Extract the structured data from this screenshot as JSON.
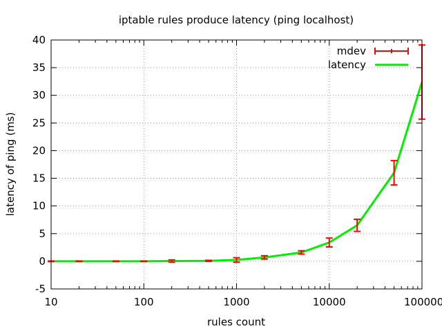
{
  "chart_data": {
    "type": "line",
    "title": "iptable rules produce latency (ping localhost)",
    "xlabel": "rules count",
    "ylabel": "latency of ping (ms)",
    "x_scale": "log",
    "xlim": [
      10,
      100000
    ],
    "ylim": [
      -5,
      40
    ],
    "x_ticks": [
      10,
      100,
      1000,
      10000,
      100000
    ],
    "x_tick_labels": [
      "10",
      "100",
      "1000",
      "10000",
      "100000"
    ],
    "y_ticks": [
      -5,
      0,
      5,
      10,
      15,
      20,
      25,
      30,
      35,
      40
    ],
    "y_tick_labels": [
      "-5",
      "0",
      "5",
      "10",
      "15",
      "20",
      "25",
      "30",
      "35",
      "40"
    ],
    "grid": true,
    "legend_position": "top-right",
    "x": [
      10,
      20,
      50,
      100,
      200,
      500,
      1000,
      2000,
      5000,
      10000,
      20000,
      50000,
      100000
    ],
    "series": [
      {
        "name": "mdev",
        "kind": "errorbar",
        "color": "#ff0000",
        "values": [
          0.0,
          0.0,
          0.0,
          0.0,
          0.05,
          0.08,
          0.25,
          0.7,
          1.6,
          3.4,
          6.5,
          16.0,
          32.4
        ],
        "errors": [
          0.05,
          0.05,
          0.05,
          0.05,
          0.2,
          0.1,
          0.4,
          0.3,
          0.3,
          0.8,
          1.1,
          2.2,
          6.7
        ]
      },
      {
        "name": "latency",
        "kind": "line",
        "color": "#00ee00",
        "values": [
          0.0,
          0.0,
          0.0,
          0.0,
          0.05,
          0.08,
          0.25,
          0.7,
          1.6,
          3.4,
          6.5,
          16.0,
          32.4
        ]
      }
    ]
  }
}
